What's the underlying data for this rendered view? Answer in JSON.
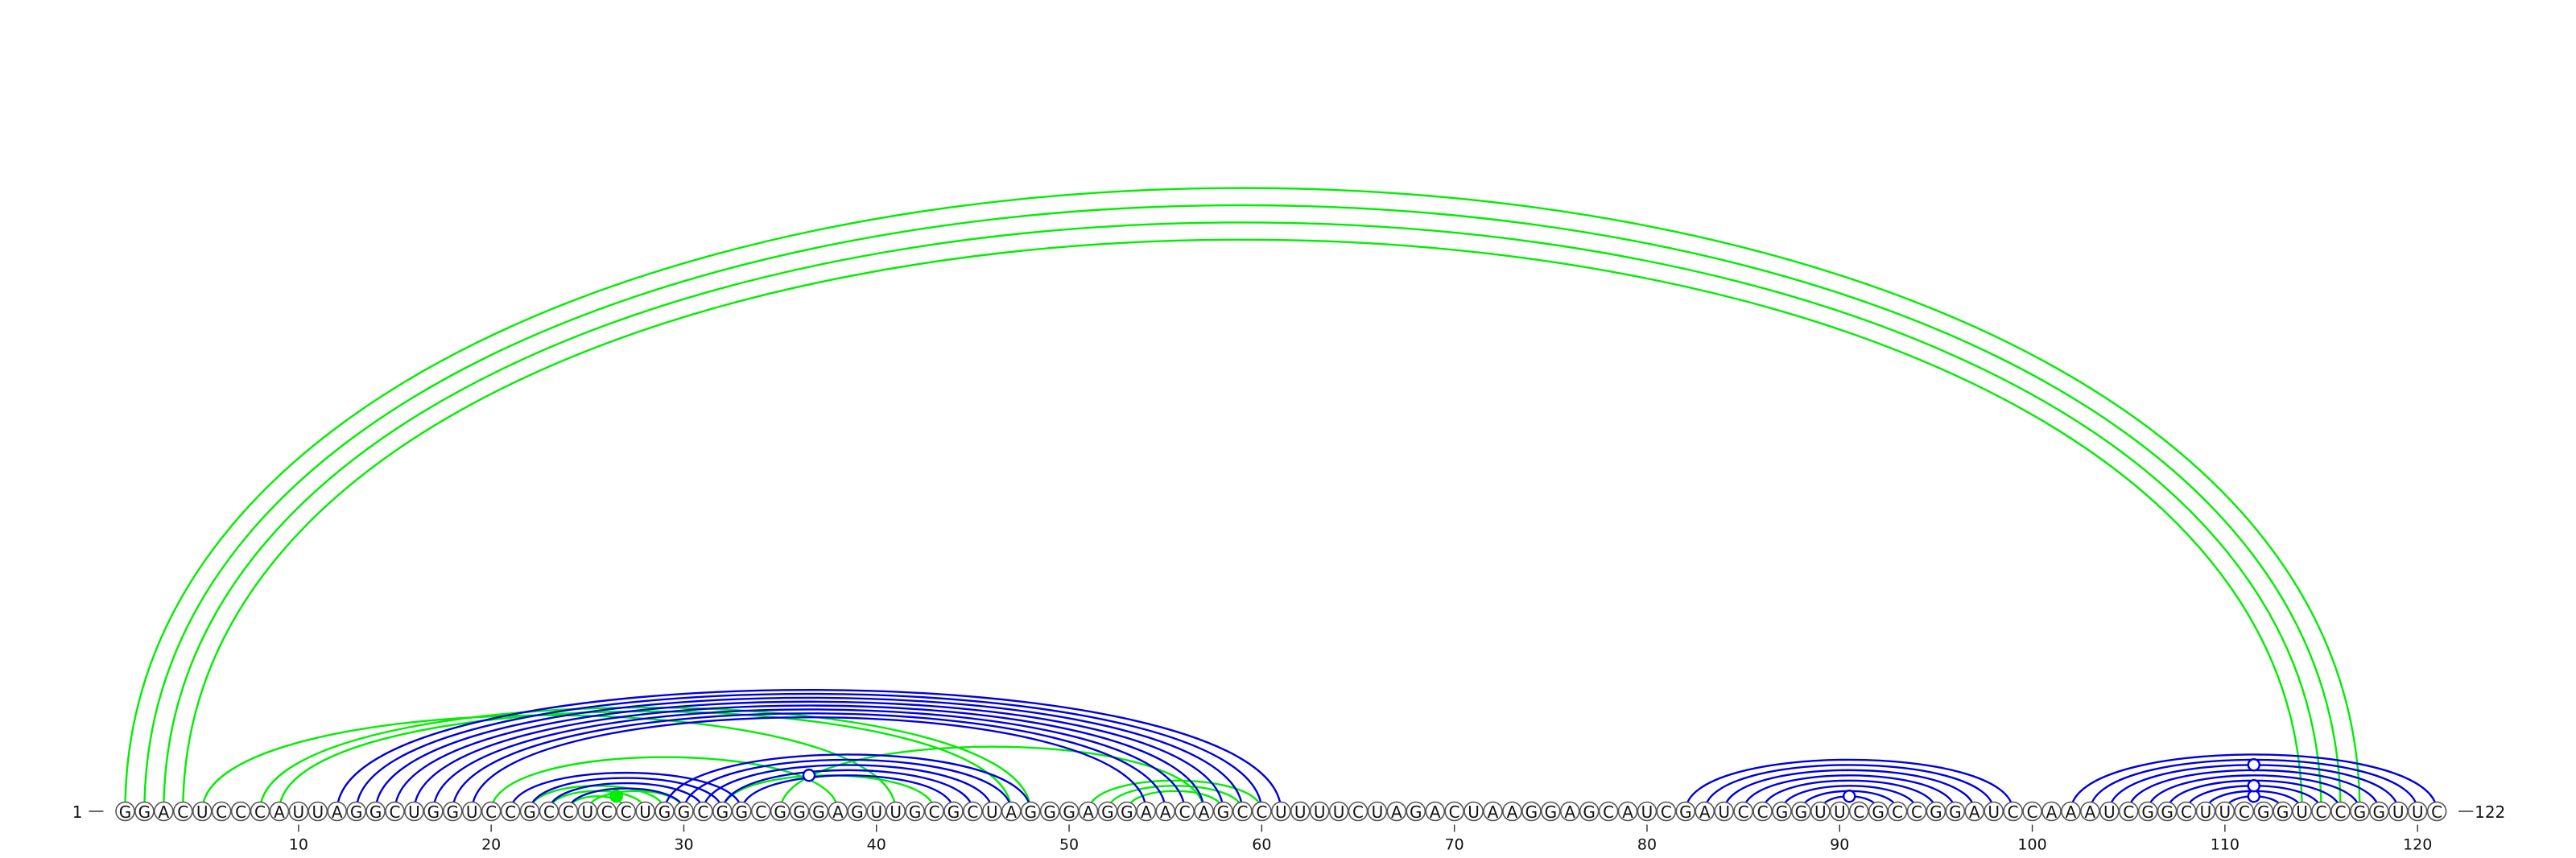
{
  "sequence": "GGACUCCCAUUAGGCUGGUCCGCCUCCUGGCGGCGGGAGUUGCGCUAGGGAGGAACAGCCUUUUCUAGACUAAGGAGCAUCGAUCCGGUUCGCCGGAUCCAAAUCGGCUUCGGUCCGGUUC",
  "start_label": "1",
  "end_label": "122",
  "ticks": [
    10,
    20,
    30,
    40,
    50,
    60,
    70,
    80,
    90,
    100,
    110,
    120
  ],
  "colors": {
    "blue": "#0000dd",
    "green": "#00ee00"
  },
  "arcs": {
    "blue": [
      [
        12,
        61
      ],
      [
        13,
        60
      ],
      [
        14,
        59
      ],
      [
        15,
        58
      ],
      [
        16,
        57
      ],
      [
        17,
        56
      ],
      [
        18,
        55
      ],
      [
        19,
        54
      ],
      [
        21,
        33
      ],
      [
        22,
        32
      ],
      [
        23,
        31
      ],
      [
        24,
        30
      ],
      [
        29,
        48
      ],
      [
        30,
        47
      ],
      [
        31,
        46
      ],
      [
        32,
        45
      ],
      [
        33,
        44
      ],
      [
        82,
        99
      ],
      [
        83,
        98
      ],
      [
        84,
        97
      ],
      [
        85,
        96
      ],
      [
        86,
        95
      ],
      [
        87,
        94
      ],
      [
        88,
        93
      ],
      [
        89,
        92
      ],
      [
        102,
        121
      ],
      [
        103,
        120
      ],
      [
        104,
        119
      ],
      [
        105,
        118
      ],
      [
        106,
        117
      ],
      [
        107,
        116
      ],
      [
        108,
        115
      ],
      [
        109,
        114
      ],
      [
        110,
        113
      ]
    ],
    "green": [
      [
        1,
        117
      ],
      [
        2,
        116
      ],
      [
        3,
        115
      ],
      [
        4,
        114
      ],
      [
        5,
        41
      ],
      [
        8,
        48
      ],
      [
        9,
        47
      ],
      [
        20,
        38
      ],
      [
        22,
        29
      ],
      [
        23,
        28
      ],
      [
        24,
        27
      ],
      [
        25,
        30
      ],
      [
        32,
        43
      ],
      [
        35,
        57
      ],
      [
        51,
        60
      ],
      [
        52,
        59
      ],
      [
        53,
        58
      ]
    ]
  },
  "markers": [
    {
      "pos": 26.5,
      "color": "green",
      "filled": true,
      "arc": [
        24,
        27
      ]
    },
    {
      "pos": 36.5,
      "color": "blue",
      "filled": false,
      "arc": [
        31,
        42
      ]
    },
    {
      "pos": 90.5,
      "color": "blue",
      "filled": false,
      "arc": [
        89,
        92
      ]
    },
    {
      "pos": 111.5,
      "color": "blue",
      "filled": false,
      "arc": [
        110,
        113
      ]
    },
    {
      "pos": 111.5,
      "color": "blue",
      "filled": false,
      "arc": [
        108,
        115
      ]
    },
    {
      "pos": 111.5,
      "color": "blue",
      "filled": false,
      "arc": [
        104,
        119
      ]
    }
  ]
}
